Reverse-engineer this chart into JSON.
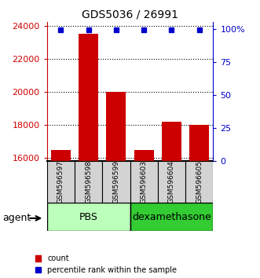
{
  "title": "GDS5036 / 26991",
  "samples": [
    "GSM596597",
    "GSM596598",
    "GSM596599",
    "GSM596603",
    "GSM596604",
    "GSM596605"
  ],
  "counts": [
    16500,
    23500,
    20000,
    16500,
    18200,
    18000
  ],
  "percentile_ranks": [
    99,
    99,
    99,
    99,
    99,
    99
  ],
  "ylim_left": [
    15800,
    24200
  ],
  "ylim_right": [
    0,
    105
  ],
  "yticks_left": [
    16000,
    18000,
    20000,
    22000,
    24000
  ],
  "ytick_labels_left": [
    "16000",
    "18000",
    "20000",
    "22000",
    "24000"
  ],
  "yticks_right": [
    0,
    25,
    50,
    75,
    100
  ],
  "ytick_labels_right": [
    "0",
    "25",
    "50",
    "75",
    "100%"
  ],
  "bar_color": "#cc0000",
  "dot_color": "#0000cc",
  "group_labels": [
    "PBS",
    "dexamethasone"
  ],
  "pbs_color": "#bbffbb",
  "dex_color": "#33cc33",
  "legend_count_label": "count",
  "legend_percentile_label": "percentile rank within the sample",
  "bar_width": 0.7
}
